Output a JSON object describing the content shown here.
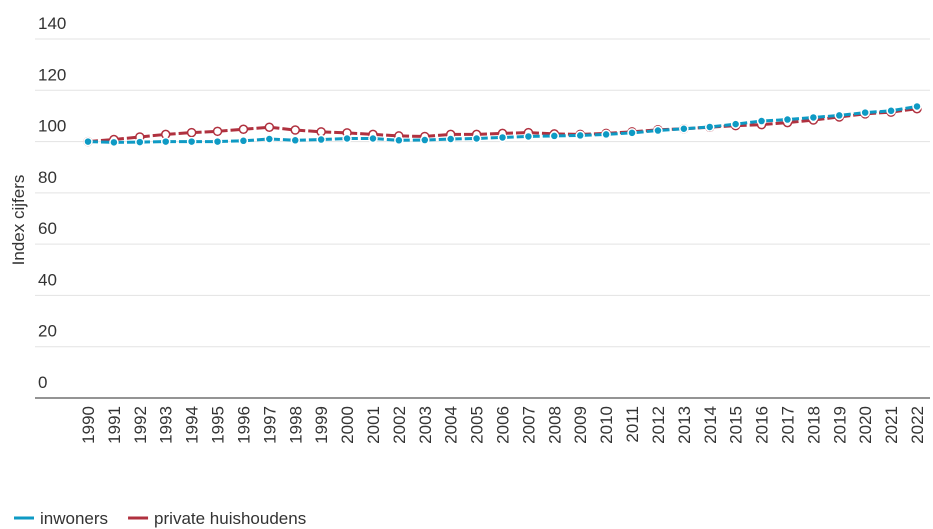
{
  "chart_data": {
    "type": "line",
    "ylabel": "Index cijfers",
    "categories": [
      "1990",
      "1991",
      "1992",
      "1993",
      "1994",
      "1995",
      "1996",
      "1997",
      "1998",
      "1999",
      "2000",
      "2001",
      "2002",
      "2003",
      "2004",
      "2005",
      "2006",
      "2007",
      "2008",
      "2009",
      "2010",
      "2011",
      "2012",
      "2013",
      "2014",
      "2015",
      "2016",
      "2017",
      "2018",
      "2019",
      "2020",
      "2021",
      "2022"
    ],
    "series": [
      {
        "name": "inwoners",
        "color": "#0e9ac4",
        "values": [
          100.0,
          99.7,
          99.8,
          100.0,
          100.0,
          100.0,
          100.3,
          101.0,
          100.5,
          100.8,
          101.2,
          101.2,
          100.5,
          100.6,
          101.0,
          101.2,
          101.6,
          102.0,
          102.2,
          102.4,
          102.8,
          103.4,
          104.3,
          105.0,
          105.7,
          106.8,
          108.0,
          108.6,
          109.4,
          110.2,
          111.3,
          112.0,
          113.7
        ]
      },
      {
        "name": "private huishoudens",
        "color": "#b0313f",
        "values": [
          100.0,
          100.8,
          101.8,
          102.8,
          103.5,
          104.0,
          104.8,
          105.6,
          104.5,
          103.8,
          103.4,
          102.8,
          102.2,
          102.0,
          102.8,
          102.8,
          103.2,
          103.5,
          103.0,
          102.8,
          103.2,
          103.8,
          104.6,
          105.0,
          105.6,
          106.2,
          106.6,
          107.4,
          108.4,
          109.6,
          110.8,
          111.5,
          112.8
        ]
      }
    ],
    "ylim": [
      0,
      140
    ],
    "yticks": [
      0,
      20,
      40,
      60,
      80,
      100,
      120,
      140
    ],
    "grid": true,
    "legend": "bottom-left"
  }
}
